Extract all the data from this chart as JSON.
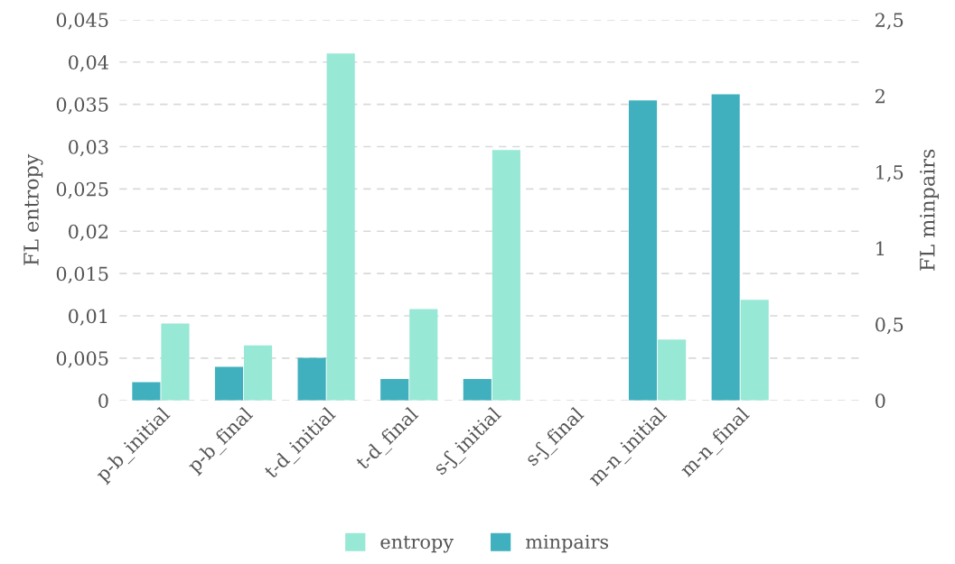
{
  "chart_data": {
    "type": "bar",
    "xlabel": null,
    "ylabel": "FL entropy",
    "y2label": "FL minpairs",
    "categories": [
      "p-b_initial",
      "p-b_final",
      "t-d_initial",
      "t-d_final",
      "s-ʃ_initial",
      "s-ʃ_final",
      "m-n_initial",
      "m-n_final",
      null
    ],
    "series": [
      {
        "name": "minpairs",
        "color": "#40b0be",
        "axis": "y2",
        "values": [
          0.12,
          0.22,
          0.28,
          0.14,
          0.14,
          0,
          1.97,
          2.01,
          null
        ]
      },
      {
        "name": "entropy",
        "color": "#98e8d6",
        "values": [
          0.0091,
          0.0065,
          0.041,
          0.0108,
          0.0296,
          0,
          0.0072,
          0.0119,
          null
        ]
      }
    ],
    "ylim": [
      0,
      0.045
    ],
    "yticks": [
      0,
      {
        "value": 0.005,
        "label": "0,005"
      },
      {
        "value": 0.01,
        "label": "0,01"
      },
      {
        "value": 0.015,
        "label": "0,015"
      },
      {
        "value": 0.02,
        "label": "0,02"
      },
      {
        "value": 0.025,
        "label": "0,025"
      },
      {
        "value": 0.03,
        "label": "0,03"
      },
      {
        "value": 0.035,
        "label": "0,035"
      },
      {
        "value": 0.04,
        "label": "0,04"
      },
      {
        "value": 0.045,
        "label": "0,045"
      }
    ],
    "y2lim": [
      0,
      2.5
    ],
    "y2ticks": [
      0,
      {
        "value": 0.5,
        "label": "0,5"
      },
      1,
      {
        "value": 1.5,
        "label": "1,5"
      },
      2,
      {
        "value": 2.5,
        "label": "2,5"
      }
    ],
    "grid": "y",
    "legend": "bottom"
  }
}
